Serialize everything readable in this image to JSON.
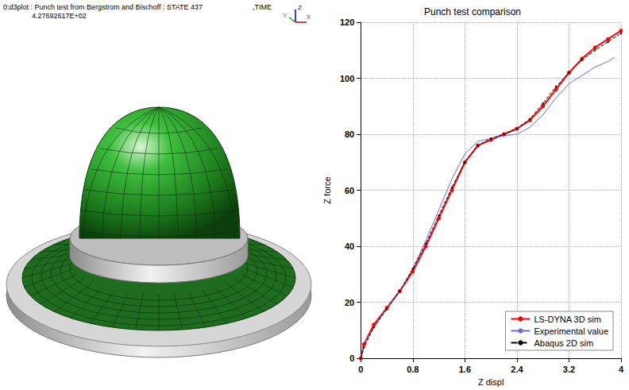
{
  "render_panel": {
    "header": "0:d3plot : Punch test from Bergstrom and Bischoff : STATE 437",
    "time_label": ",TIME",
    "time": "4.27692617E+02",
    "axes": [
      "Y",
      "Z",
      "X"
    ]
  },
  "chart_data": {
    "type": "line",
    "title": "Punch test comparison",
    "x_label": "Z displ",
    "y_label": "Z force",
    "xlim": [
      0,
      4
    ],
    "xticks": [
      0,
      0.8,
      1.6,
      2.4,
      3.2,
      4
    ],
    "ylim": [
      0,
      120
    ],
    "yticks": [
      0,
      20,
      40,
      60,
      80,
      100,
      120
    ],
    "grid": true,
    "legend": "lower right",
    "series": [
      {
        "name": "LS-DYNA 3D sim",
        "color": "#ff0000",
        "marker": "o",
        "line_style": "solid",
        "x": [
          0,
          0.05,
          0.2,
          0.4,
          0.6,
          0.8,
          1.0,
          1.2,
          1.4,
          1.6,
          1.8,
          2.0,
          2.2,
          2.4,
          2.6,
          2.8,
          3.0,
          3.2,
          3.4,
          3.6,
          3.8,
          4.0
        ],
        "values": [
          0,
          5,
          12,
          18,
          24,
          31,
          40,
          50,
          60,
          70,
          76,
          78,
          80,
          82,
          85,
          90,
          96,
          102,
          107,
          111,
          114,
          117
        ]
      },
      {
        "name": "Experimental value",
        "color": "#6a6ae8",
        "marker": "none",
        "line_style": "solid",
        "x": [
          0,
          0.05,
          0.2,
          0.4,
          0.6,
          0.8,
          1.0,
          1.2,
          1.4,
          1.6,
          1.8,
          2.0,
          2.2,
          2.4,
          2.6,
          2.8,
          3.0,
          3.2,
          3.4,
          3.6,
          3.8,
          3.9
        ],
        "values": [
          0,
          5,
          11,
          18,
          24,
          32,
          42,
          53,
          64,
          73,
          77.5,
          78.5,
          79.5,
          80,
          82.5,
          87,
          93,
          98,
          101,
          104,
          106,
          107.5
        ]
      },
      {
        "name": "Abaqus 2D sim",
        "color": "#000000",
        "marker": ".",
        "line_style": "dashed",
        "x": [
          0,
          0.05,
          0.2,
          0.4,
          0.6,
          0.8,
          1.0,
          1.2,
          1.4,
          1.6,
          1.8,
          2.0,
          2.2,
          2.4,
          2.6,
          2.8,
          3.0,
          3.2,
          3.4,
          3.6,
          3.8,
          4.0
        ],
        "values": [
          0,
          4,
          11,
          17.5,
          24,
          32,
          41,
          51,
          61,
          70,
          76,
          78.5,
          80,
          82,
          85.5,
          91,
          97,
          102,
          106.5,
          110,
          113,
          116
        ]
      }
    ]
  }
}
